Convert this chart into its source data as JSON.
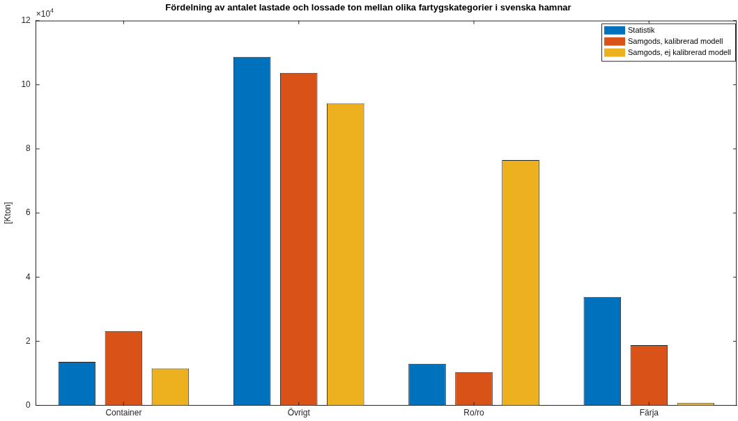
{
  "chart_data": {
    "type": "bar",
    "title": "Fördelning av antalet lastade och lossade ton mellan olika fartygskategorier i svenska hamnar",
    "ylabel": "[Kton]",
    "annotations": [
      "×10$^{4}$"
    ],
    "categories": [
      "Container",
      "Övrigt",
      "Ro/ro",
      "Färja"
    ],
    "series": [
      {
        "name": "Statistik",
        "color": "#0072bd",
        "values": [
          1.36,
          10.87,
          1.3,
          3.38
        ]
      },
      {
        "name": "Samgods, kalibrerad modell",
        "color": "#d95319",
        "values": [
          2.32,
          10.37,
          1.04,
          1.88
        ]
      },
      {
        "name": "Samgods, ej kalibrerad modell",
        "color": "#edb120",
        "values": [
          1.15,
          9.42,
          7.65,
          0.07
        ]
      }
    ],
    "ylim": [
      0,
      12
    ],
    "yticks": [
      0,
      2,
      4,
      6,
      8,
      10,
      12
    ],
    "grid": false,
    "legend": "top right"
  }
}
